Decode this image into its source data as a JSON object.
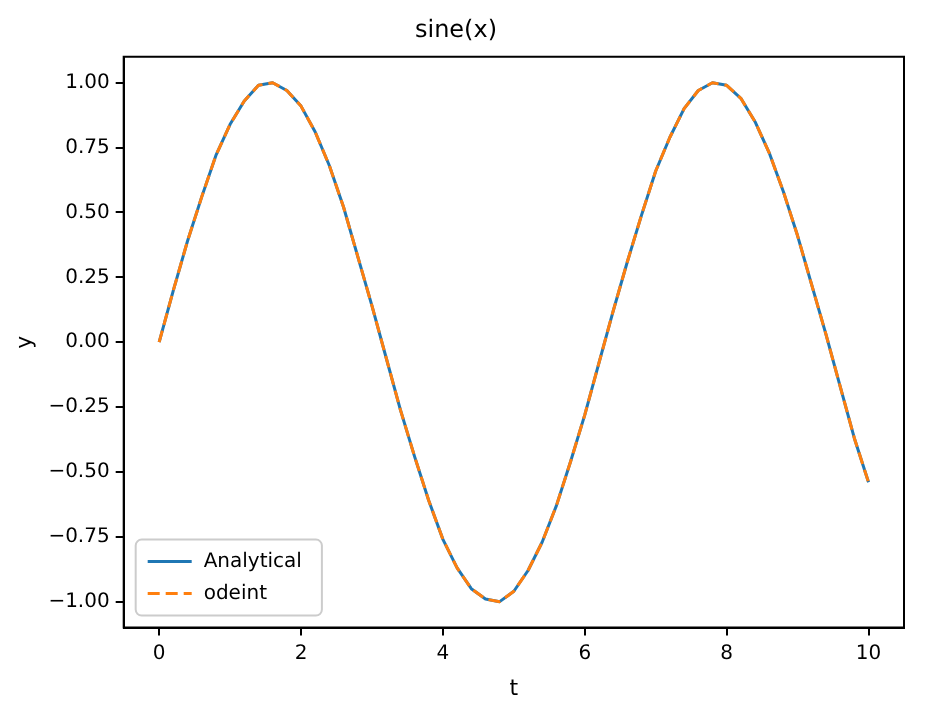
{
  "chart_data": {
    "type": "line",
    "title": "sine(x)",
    "xlabel": "t",
    "ylabel": "y",
    "x": [
      0,
      0.2,
      0.4,
      0.6,
      0.8,
      1.0,
      1.2,
      1.4,
      1.6,
      1.8,
      2.0,
      2.2,
      2.4,
      2.6,
      2.8,
      3.0,
      3.2,
      3.4,
      3.6,
      3.8,
      4.0,
      4.2,
      4.4,
      4.6,
      4.8,
      5.0,
      5.2,
      5.4,
      5.6,
      5.8,
      6.0,
      6.2,
      6.4,
      6.6,
      6.8,
      7.0,
      7.2,
      7.4,
      7.6,
      7.8,
      8.0,
      8.2,
      8.4,
      8.6,
      8.8,
      9.0,
      9.2,
      9.4,
      9.6,
      9.8,
      10.0
    ],
    "series": [
      {
        "name": "Analytical",
        "color": "#1f77b4",
        "line_style": "solid",
        "values": [
          0,
          0.2,
          0.39,
          0.56,
          0.72,
          0.84,
          0.93,
          0.99,
          1.0,
          0.97,
          0.91,
          0.81,
          0.68,
          0.52,
          0.33,
          0.14,
          -0.06,
          -0.26,
          -0.44,
          -0.61,
          -0.76,
          -0.87,
          -0.95,
          -0.99,
          -1.0,
          -0.96,
          -0.88,
          -0.77,
          -0.63,
          -0.46,
          -0.28,
          -0.08,
          0.12,
          0.31,
          0.49,
          0.66,
          0.79,
          0.9,
          0.97,
          1.0,
          0.99,
          0.94,
          0.85,
          0.73,
          0.58,
          0.41,
          0.22,
          0.03,
          -0.17,
          -0.37,
          -0.54
        ]
      },
      {
        "name": "odeint",
        "color": "#ff7f0e",
        "line_style": "dashed",
        "values": [
          0,
          0.2,
          0.39,
          0.56,
          0.72,
          0.84,
          0.93,
          0.99,
          1.0,
          0.97,
          0.91,
          0.81,
          0.68,
          0.52,
          0.33,
          0.14,
          -0.06,
          -0.26,
          -0.44,
          -0.61,
          -0.76,
          -0.87,
          -0.95,
          -0.99,
          -1.0,
          -0.96,
          -0.88,
          -0.77,
          -0.63,
          -0.46,
          -0.28,
          -0.08,
          0.12,
          0.31,
          0.49,
          0.66,
          0.79,
          0.9,
          0.97,
          1.0,
          0.99,
          0.94,
          0.85,
          0.73,
          0.58,
          0.41,
          0.22,
          0.03,
          -0.17,
          -0.37,
          -0.54
        ]
      }
    ],
    "xlim": [
      -0.5,
      10.5
    ],
    "xticks": [
      0,
      2,
      4,
      6,
      8,
      10
    ],
    "ylim": [
      -1.1,
      1.1
    ],
    "yticks": [
      {
        "value": -1,
        "label": "−1.00"
      },
      {
        "value": -0.75,
        "label": "−0.75"
      },
      {
        "value": -0.5,
        "label": "−0.50"
      },
      {
        "value": -0.25,
        "label": "−0.25"
      },
      {
        "value": 0,
        "label": "0.00"
      },
      {
        "value": 0.25,
        "label": "0.25"
      },
      {
        "value": 0.5,
        "label": "0.50"
      },
      {
        "value": 0.75,
        "label": "0.75"
      },
      {
        "value": 1,
        "label": "1.00"
      }
    ],
    "legend": "bottom left",
    "grid": false,
    "marker": "none"
  }
}
